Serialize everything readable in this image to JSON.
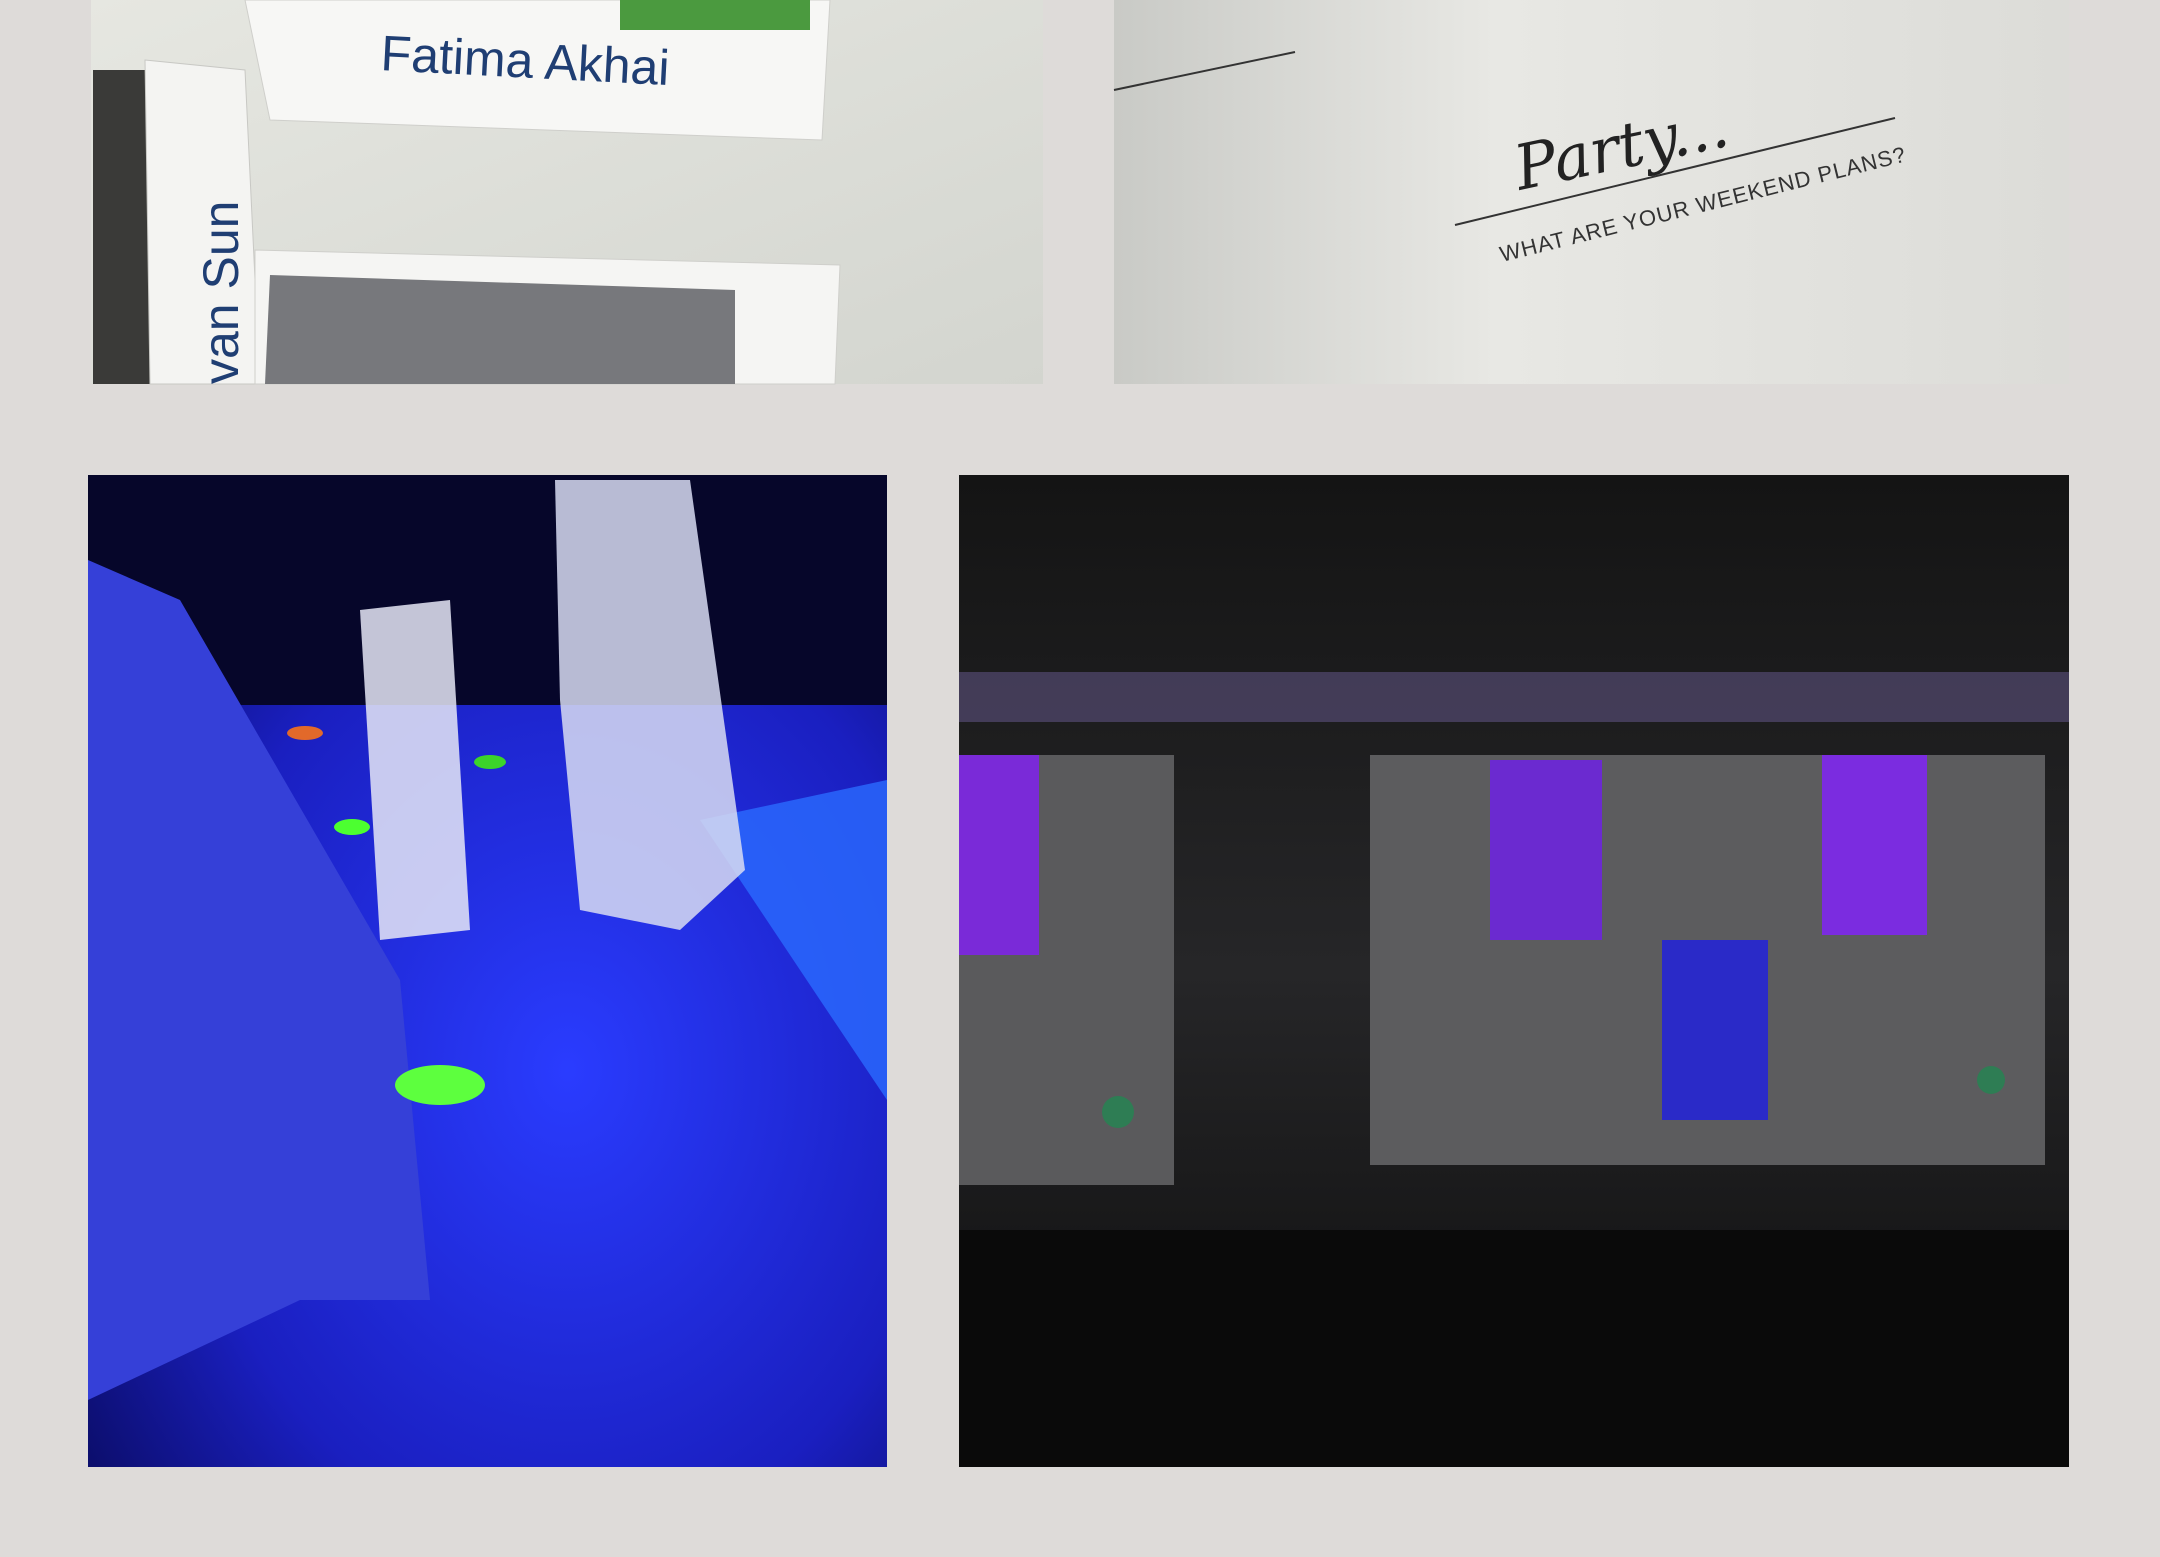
{
  "gallery": {
    "photos": [
      {
        "texts": [
          "Fatima Akhai",
          "van Sun"
        ]
      },
      {
        "texts": [
          "Party...",
          "WHAT ARE YOUR WEEKEND PLANS?"
        ]
      }
    ]
  }
}
